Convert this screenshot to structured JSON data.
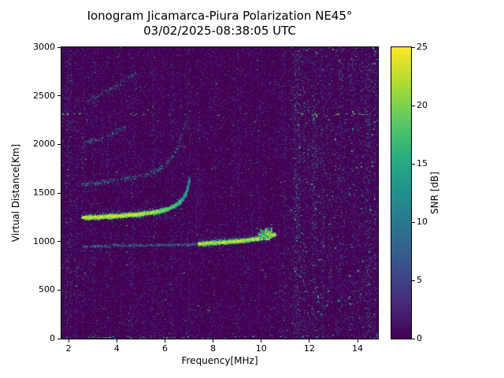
{
  "chart_data": {
    "type": "heatmap",
    "title": "Ionogram Jicamarca-Piura Polarization NE45°",
    "subtitle": "03/02/2025-08:38:05 UTC",
    "xlabel": "Frequency[MHz]",
    "ylabel": "Virtual Distance[Km]",
    "xlim": [
      1.7,
      14.85
    ],
    "ylim": [
      0,
      3000
    ],
    "xticks": [
      2,
      4,
      6,
      8,
      10,
      12,
      14
    ],
    "yticks": [
      0,
      500,
      1000,
      1500,
      2000,
      2500,
      3000
    ],
    "grid": false,
    "background_snr_db": 0,
    "colorbar": {
      "label": "SNR [dB]",
      "min": 0,
      "max": 25,
      "ticks": [
        0,
        5,
        10,
        15,
        20,
        25
      ],
      "colormap": "viridis"
    },
    "seed": 20250302,
    "noise": {
      "base_count": 20000,
      "base_pow": 2.2,
      "base_max_db": 8,
      "speck_count": 700,
      "speck_min_db": 7,
      "speck_max_db": 20,
      "speck_right_bias": 0.45,
      "streak_count": 160,
      "streak_max_db": 5,
      "right_region": {
        "f0": 11.2,
        "f1": 14.82,
        "count": 2200,
        "max_db": 9,
        "bright_count": 160,
        "bright_min_db": 8,
        "bright_max_db": 18
      }
    },
    "rfi_bands": [
      {
        "f": 2.0,
        "w": 0.14,
        "count": 500,
        "max_db": 12
      },
      {
        "f": 2.3,
        "w": 0.08,
        "count": 220,
        "max_db": 10
      },
      {
        "f": 2.62,
        "w": 0.07,
        "count": 180,
        "max_db": 10
      },
      {
        "f": 3.05,
        "w": 0.06,
        "count": 150,
        "max_db": 10
      },
      {
        "f": 3.62,
        "w": 0.05,
        "count": 120,
        "max_db": 9
      },
      {
        "f": 4.65,
        "w": 0.05,
        "count": 130,
        "max_db": 11
      },
      {
        "f": 5.52,
        "w": 0.06,
        "count": 160,
        "max_db": 10
      },
      {
        "f": 6.28,
        "w": 0.06,
        "count": 150,
        "max_db": 10
      },
      {
        "f": 7.02,
        "w": 0.05,
        "count": 130,
        "max_db": 9
      },
      {
        "f": 9.05,
        "w": 0.05,
        "count": 110,
        "max_db": 9
      },
      {
        "f": 10.95,
        "w": 0.07,
        "count": 200,
        "max_db": 12
      },
      {
        "f": 11.48,
        "w": 0.16,
        "count": 700,
        "max_db": 16
      },
      {
        "f": 11.78,
        "w": 0.06,
        "count": 180,
        "max_db": 12
      },
      {
        "f": 12.2,
        "w": 0.1,
        "count": 350,
        "max_db": 14
      },
      {
        "f": 12.55,
        "w": 0.07,
        "count": 200,
        "max_db": 12
      },
      {
        "f": 13.3,
        "w": 0.07,
        "count": 220,
        "max_db": 12
      },
      {
        "f": 13.82,
        "w": 0.06,
        "count": 160,
        "max_db": 12
      },
      {
        "f": 14.45,
        "w": 0.12,
        "count": 420,
        "max_db": 15
      },
      {
        "f": 14.72,
        "w": 0.07,
        "count": 240,
        "max_db": 14
      }
    ],
    "traces": [
      {
        "name": "F echo lower leg (faint)",
        "points": [
          [
            2.55,
            948
          ],
          [
            3.4,
            956
          ],
          [
            4.4,
            962
          ],
          [
            5.4,
            966
          ],
          [
            6.4,
            970
          ],
          [
            7.3,
            976
          ]
        ],
        "snr_db": 10,
        "thickness_km": 22,
        "density": 90,
        "size": 1
      },
      {
        "name": "F echo lower leg (bright)",
        "points": [
          [
            7.35,
            982
          ],
          [
            8.1,
            994
          ],
          [
            8.8,
            1006
          ],
          [
            9.4,
            1020
          ],
          [
            9.9,
            1038
          ],
          [
            10.3,
            1058
          ],
          [
            10.55,
            1078
          ]
        ],
        "snr_db": 24,
        "thickness_km": 26,
        "density": 290,
        "size": 2,
        "halo": true
      },
      {
        "name": "F echo main (1 hop)",
        "points": [
          [
            2.55,
            1252
          ],
          [
            3.3,
            1260
          ],
          [
            4.1,
            1272
          ],
          [
            4.9,
            1288
          ],
          [
            5.6,
            1310
          ],
          [
            6.1,
            1340
          ],
          [
            6.45,
            1382
          ],
          [
            6.7,
            1438
          ],
          [
            6.88,
            1520
          ],
          [
            7.0,
            1650
          ]
        ],
        "snr_db": 25,
        "thickness_km": 28,
        "density": 300,
        "size": 2,
        "halo": true,
        "taper": true
      },
      {
        "name": "2-hop multiple",
        "points": [
          [
            2.55,
            1592
          ],
          [
            3.3,
            1612
          ],
          [
            4.1,
            1638
          ],
          [
            4.9,
            1672
          ],
          [
            5.5,
            1716
          ],
          [
            6.0,
            1790
          ],
          [
            6.35,
            1890
          ],
          [
            6.6,
            2010
          ]
        ],
        "snr_db": 13,
        "thickness_km": 45,
        "density": 70,
        "size": 1
      },
      {
        "name": "2-hop cusp",
        "points": [
          [
            6.55,
            2020
          ],
          [
            6.72,
            2130
          ],
          [
            6.85,
            2230
          ],
          [
            6.95,
            2310
          ]
        ],
        "snr_db": 13,
        "thickness_km": 50,
        "density": 60,
        "size": 1
      },
      {
        "name": "3-hop multiple",
        "points": [
          [
            2.6,
            2018
          ],
          [
            3.2,
            2058
          ],
          [
            3.8,
            2110
          ],
          [
            4.35,
            2185
          ]
        ],
        "snr_db": 12,
        "thickness_km": 45,
        "density": 55,
        "size": 1
      },
      {
        "name": "4-hop multiple",
        "points": [
          [
            2.7,
            2448
          ],
          [
            3.25,
            2505
          ],
          [
            3.8,
            2575
          ],
          [
            4.35,
            2660
          ],
          [
            4.8,
            2745
          ]
        ],
        "snr_db": 12,
        "thickness_km": 45,
        "density": 50,
        "size": 1
      }
    ],
    "spread_blob": {
      "center": [
        10.15,
        1080
      ],
      "sigma_f": 0.28,
      "sigma_km": 55,
      "count": 300,
      "min_db": 10,
      "max_db": 25
    },
    "interference_line": {
      "km": 2310,
      "snr_db": 22,
      "segments": [
        {
          "f0": 1.72,
          "f1": 2.45,
          "p": 0.5
        },
        {
          "f0": 2.45,
          "f1": 4.5,
          "p": 0.06
        },
        {
          "f0": 4.55,
          "f1": 4.95,
          "p": 0.5
        },
        {
          "f0": 4.95,
          "f1": 11.2,
          "p": 0.05
        },
        {
          "f0": 11.65,
          "f1": 14.82,
          "p": 0.6
        }
      ]
    },
    "ground_line": {
      "km": 14,
      "snr_db": 20,
      "segments": [
        {
          "f0": 2.3,
          "f1": 4.0,
          "p": 0.5
        },
        {
          "f0": 4.0,
          "f1": 7.5,
          "p": 0.18
        },
        {
          "f0": 10.6,
          "f1": 11.1,
          "p": 0.5
        },
        {
          "f0": 1.72,
          "f1": 14.82,
          "p": 0.15
        }
      ]
    }
  }
}
